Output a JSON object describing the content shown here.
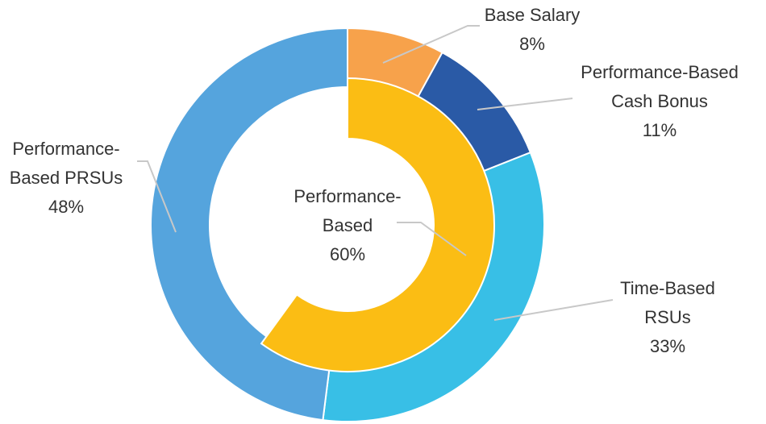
{
  "chart_data": {
    "type": "pie",
    "title": "",
    "outer_ring": {
      "slices": [
        {
          "name_lines": [
            "Base Salary"
          ],
          "value": 8,
          "value_label": "8%",
          "color": "#F7A24B"
        },
        {
          "name_lines": [
            "Performance-Based",
            "Cash Bonus"
          ],
          "value": 11,
          "value_label": "11%",
          "color": "#2A5AA6"
        },
        {
          "name_lines": [
            "Time-Based",
            "RSUs"
          ],
          "value": 33,
          "value_label": "33%",
          "color": "#38BFE6"
        },
        {
          "name_lines": [
            "Performance-",
            "Based PRSUs"
          ],
          "value": 48,
          "value_label": "48%",
          "color": "#55A4DD"
        }
      ]
    },
    "inner_ring": {
      "slices": [
        {
          "name_lines": [
            "Performance-",
            "Based"
          ],
          "value": 60,
          "value_label": "60%",
          "color": "#FBBD14"
        }
      ]
    }
  }
}
